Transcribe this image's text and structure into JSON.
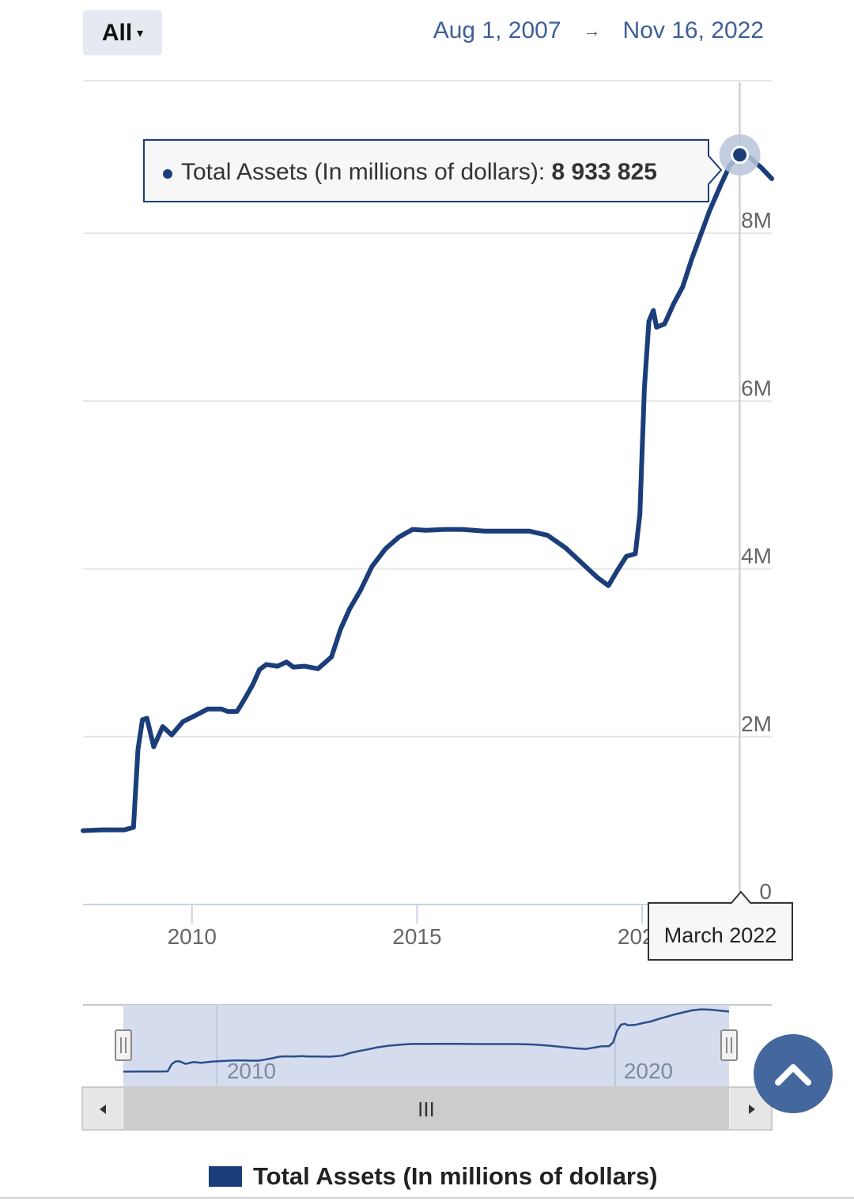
{
  "range_selector": {
    "label": "All",
    "caret": "▾"
  },
  "date_range": {
    "from": "Aug 1, 2007",
    "arrow": "→",
    "to": "Nov 16, 2022"
  },
  "tooltip": {
    "series": "Total Assets (In millions of dollars)",
    "separator": ": ",
    "value": "8 933 825"
  },
  "crosshair_label": "March 2022",
  "navigator": {
    "labels": [
      "2010",
      "2020"
    ],
    "scroll_grip": "III"
  },
  "legend": {
    "label": "Total Assets (In millions of dollars)"
  },
  "colors": {
    "series": "#1b3e7a",
    "accent": "#3e5f99",
    "nav_fill": "#d5dced",
    "scroll_top_bg": "#44679d"
  },
  "icons": {
    "scroll_top": "chevron-up-icon",
    "nav_left": "arrow-left-icon",
    "nav_right": "arrow-right-icon"
  },
  "chart_data": {
    "type": "line",
    "series": [
      {
        "name": "Total Assets (In millions of dollars)"
      }
    ],
    "x_ticks": [
      "2010",
      "2015",
      "2020"
    ],
    "y_ticks": [
      "0",
      "2M",
      "4M",
      "6M",
      "8M"
    ],
    "ylim": [
      0,
      9800000
    ],
    "xlim": [
      2007.58,
      2022.88
    ],
    "grid": "horizontal",
    "legend_position": "bottom-center",
    "points": [
      [
        2007.58,
        880000
      ],
      [
        2008.0,
        890000
      ],
      [
        2008.5,
        890000
      ],
      [
        2008.7,
        920000
      ],
      [
        2008.8,
        1850000
      ],
      [
        2008.9,
        2200000
      ],
      [
        2009.0,
        2220000
      ],
      [
        2009.15,
        1880000
      ],
      [
        2009.35,
        2120000
      ],
      [
        2009.55,
        2020000
      ],
      [
        2009.8,
        2180000
      ],
      [
        2010.1,
        2260000
      ],
      [
        2010.35,
        2330000
      ],
      [
        2010.65,
        2330000
      ],
      [
        2010.8,
        2300000
      ],
      [
        2011.0,
        2300000
      ],
      [
        2011.15,
        2430000
      ],
      [
        2011.35,
        2620000
      ],
      [
        2011.5,
        2800000
      ],
      [
        2011.65,
        2860000
      ],
      [
        2011.9,
        2840000
      ],
      [
        2012.1,
        2890000
      ],
      [
        2012.25,
        2830000
      ],
      [
        2012.5,
        2840000
      ],
      [
        2012.8,
        2810000
      ],
      [
        2013.1,
        2950000
      ],
      [
        2013.3,
        3280000
      ],
      [
        2013.5,
        3520000
      ],
      [
        2013.75,
        3750000
      ],
      [
        2014.0,
        4030000
      ],
      [
        2014.3,
        4240000
      ],
      [
        2014.6,
        4380000
      ],
      [
        2014.9,
        4470000
      ],
      [
        2015.2,
        4460000
      ],
      [
        2015.6,
        4470000
      ],
      [
        2016.0,
        4470000
      ],
      [
        2016.5,
        4450000
      ],
      [
        2017.0,
        4450000
      ],
      [
        2017.5,
        4450000
      ],
      [
        2017.9,
        4400000
      ],
      [
        2018.3,
        4250000
      ],
      [
        2018.7,
        4050000
      ],
      [
        2019.0,
        3900000
      ],
      [
        2019.25,
        3800000
      ],
      [
        2019.45,
        3980000
      ],
      [
        2019.65,
        4150000
      ],
      [
        2019.85,
        4180000
      ],
      [
        2019.95,
        4650000
      ],
      [
        2020.05,
        6150000
      ],
      [
        2020.15,
        6950000
      ],
      [
        2020.25,
        7080000
      ],
      [
        2020.32,
        6880000
      ],
      [
        2020.5,
        6920000
      ],
      [
        2020.7,
        7160000
      ],
      [
        2020.9,
        7360000
      ],
      [
        2021.1,
        7690000
      ],
      [
        2021.3,
        7980000
      ],
      [
        2021.5,
        8270000
      ],
      [
        2021.75,
        8580000
      ],
      [
        2021.95,
        8810000
      ],
      [
        2022.17,
        8933825
      ],
      [
        2022.4,
        8900000
      ],
      [
        2022.65,
        8780000
      ],
      [
        2022.88,
        8650000
      ]
    ],
    "highlighted": {
      "x": "March 2022",
      "value": 8933825
    }
  }
}
